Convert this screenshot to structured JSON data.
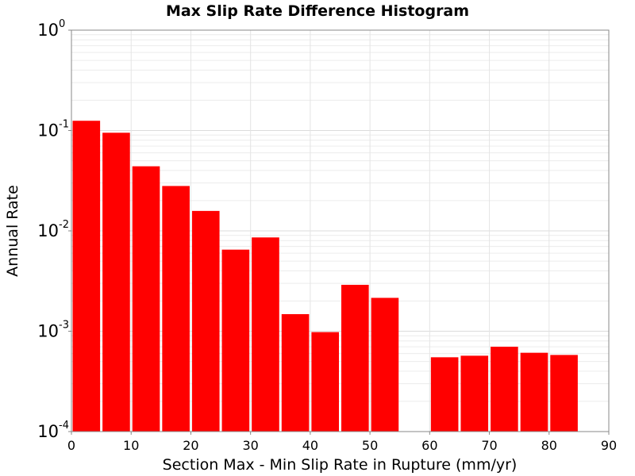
{
  "chart_data": {
    "type": "bar",
    "title": "Max Slip Rate Difference Histogram",
    "xlabel": "Section Max - Min Slip Rate in Rupture (mm/yr)",
    "ylabel": "Annual Rate",
    "xlim": [
      0,
      90
    ],
    "ylim": [
      0.0001,
      1
    ],
    "yscale": "log",
    "grid": true,
    "bar_color": "#ff0000",
    "bin_width": 5,
    "x_ticks": [
      "0",
      "10",
      "20",
      "30",
      "40",
      "50",
      "60",
      "70",
      "80",
      "90"
    ],
    "y_ticks": [
      {
        "base": "10",
        "exp": "0"
      },
      {
        "base": "10",
        "exp": "-1"
      },
      {
        "base": "10",
        "exp": "-2"
      },
      {
        "base": "10",
        "exp": "-3"
      },
      {
        "base": "10",
        "exp": "-4"
      }
    ],
    "bars": [
      {
        "x": 2.5,
        "y": 0.125
      },
      {
        "x": 7.5,
        "y": 0.095
      },
      {
        "x": 12.5,
        "y": 0.044
      },
      {
        "x": 17.5,
        "y": 0.028
      },
      {
        "x": 22.5,
        "y": 0.0158
      },
      {
        "x": 27.5,
        "y": 0.0065
      },
      {
        "x": 32.5,
        "y": 0.0086
      },
      {
        "x": 37.5,
        "y": 0.00148
      },
      {
        "x": 42.5,
        "y": 0.00098
      },
      {
        "x": 47.5,
        "y": 0.0029
      },
      {
        "x": 52.5,
        "y": 0.00215
      },
      {
        "x": 62.5,
        "y": 0.00055
      },
      {
        "x": 67.5,
        "y": 0.00057
      },
      {
        "x": 72.5,
        "y": 0.0007
      },
      {
        "x": 77.5,
        "y": 0.00061
      },
      {
        "x": 82.5,
        "y": 0.00058
      }
    ]
  }
}
